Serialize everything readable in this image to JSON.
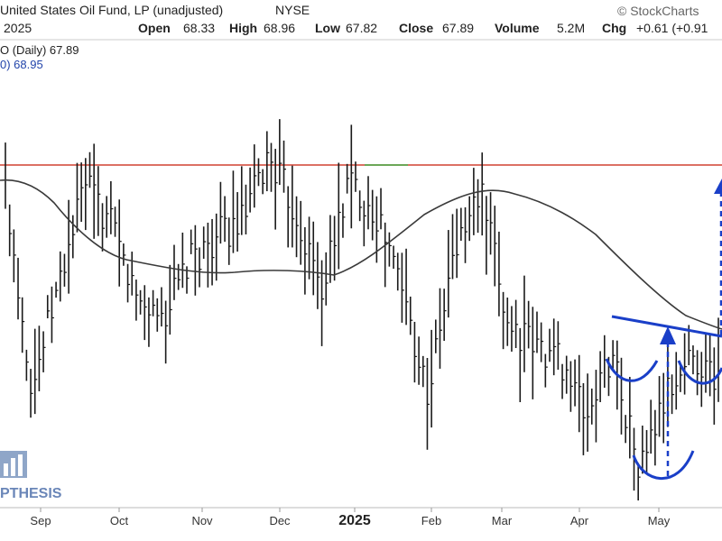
{
  "header": {
    "title": "United States Oil Fund, LP (unadjusted)",
    "exchange": "NYSE",
    "watermark": "© StockCharts",
    "date_frag": "2025",
    "open_label": "Open",
    "open_value": "68.33",
    "high_label": "High",
    "high_value": "68.96",
    "low_label": "Low",
    "low_value": "67.82",
    "close_label": "Close",
    "close_value": "67.89",
    "volume_label": "Volume",
    "volume_value": "5.2M",
    "chg_label": "Chg",
    "chg_value": "+0.61 (+0.91",
    "legend_price": "O (Daily) 67.89",
    "legend_ma": "0) 68.95",
    "logo_text": "PTHESIS"
  },
  "colors": {
    "bars": "#1a1a1a",
    "moving_average": "#3a3a3a",
    "resistance": "#d04030",
    "pattern": "#1a3fc8",
    "highlight": "#44aa44"
  },
  "chart_data": {
    "type": "ohlc",
    "title": "United States Oil Fund, LP (unadjusted)",
    "ylim": [
      63.0,
      81.0
    ],
    "x_ticks": [
      "Sep",
      "Oct",
      "Nov",
      "Dec",
      "2025",
      "Feb",
      "Mar",
      "Apr",
      "May"
    ],
    "resistance_level": 75.6,
    "moving_average": [
      75.2,
      74.2,
      73.3,
      72.8,
      72.5,
      72.6,
      73.0,
      73.8,
      74.3,
      73.6,
      72.6,
      71.6,
      70.2,
      69.1,
      68.7
    ],
    "price_range": [
      74.8,
      72.3,
      70.9,
      68.8,
      74.9,
      70.8,
      72.5,
      70.5,
      73.4,
      76.5,
      79.6,
      75.2,
      74.5,
      72.3,
      71.1,
      72.9,
      74.8,
      67.0,
      64.2,
      69.9,
      65.0,
      68.0,
      68.5
    ],
    "price_close": [
      75.4,
      67.6,
      71.5,
      75.6,
      73.9,
      71.0,
      70.4,
      72.5,
      73.5,
      74.1,
      76.7,
      74.4,
      71.4,
      75.7,
      74.5,
      71.6,
      67.3,
      72.9,
      75.3,
      70.2,
      69.2,
      68.8,
      66.4,
      69.0,
      64.3,
      67.2,
      68.9,
      67.9
    ],
    "annotations": [
      "horizontal resistance line",
      "head-and-shoulders bottom neckline",
      "measured move arrows"
    ]
  }
}
